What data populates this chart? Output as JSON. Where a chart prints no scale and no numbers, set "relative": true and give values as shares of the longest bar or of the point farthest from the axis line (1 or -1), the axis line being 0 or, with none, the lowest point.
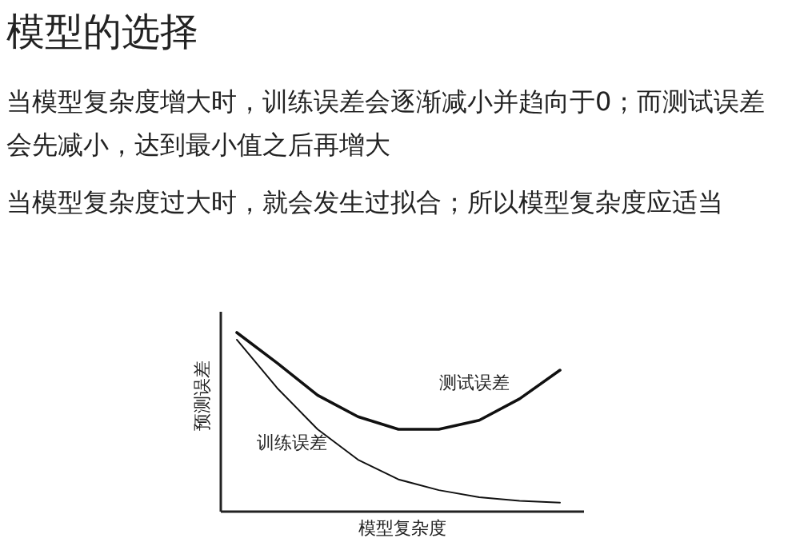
{
  "chart_data": {
    "type": "line",
    "relative": true,
    "title": "模型的选择",
    "annotations": [
      "当模型复杂度增大时，训练误差会逐渐减小并趋向于0；而测试误差会先减小，达到最小值之后再增大",
      "当模型复杂度过大时，就会发生过拟合；所以模型复杂度应适当"
    ],
    "xlabel": "模型复杂度",
    "ylabel": "预测误差",
    "categories": [
      null,
      null,
      null,
      null,
      null,
      null,
      null,
      null,
      null
    ],
    "series": [
      {
        "name": "测试误差",
        "color": "#111111",
        "values": [
          1,
          0.83,
          0.65,
          0.53,
          0.46,
          0.46,
          0.51,
          0.63,
          0.79
        ]
      },
      {
        "name": "训练误差",
        "color": "#111111",
        "values": [
          0.96,
          0.69,
          0.46,
          0.29,
          0.18,
          0.12,
          0.08,
          0.06,
          0.05
        ]
      }
    ],
    "marker": "none",
    "line_style": "solid",
    "grid": false
  }
}
